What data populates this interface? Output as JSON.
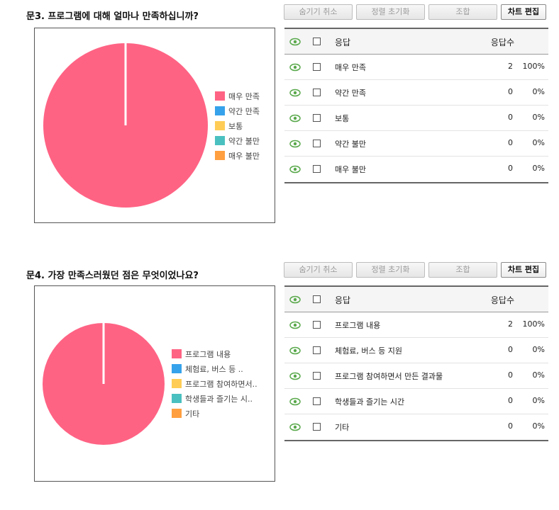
{
  "colors": {
    "very_satisfied": "#ff6384",
    "blue": "#36a2eb",
    "yellow": "#ffcd56",
    "teal": "#4bc0c0",
    "orange": "#ff9f40",
    "eye_icon": "#58a84a"
  },
  "toolbar": {
    "unhide_label": "숨기기 취소",
    "reset_sort_label": "정렬 초기화",
    "combine_label": "조합",
    "edit_chart_label": "차트 편집"
  },
  "table_header": {
    "response": "응답",
    "count": "응답수"
  },
  "q3": {
    "title": "문3. 프로그램에 대해 얼마나 만족하십니까?",
    "legend": [
      "매우 만족",
      "약간 만족",
      "보통",
      "약간 불만",
      "매우 불만"
    ],
    "rows": [
      {
        "label": "매우 만족",
        "count": "2",
        "pct": "100%"
      },
      {
        "label": "약간 만족",
        "count": "0",
        "pct": "0%"
      },
      {
        "label": "보통",
        "count": "0",
        "pct": "0%"
      },
      {
        "label": "약간 불만",
        "count": "0",
        "pct": "0%"
      },
      {
        "label": "매우 불만",
        "count": "0",
        "pct": "0%"
      }
    ]
  },
  "q4": {
    "title": "문4. 가장 만족스러웠던 점은 무엇이었나요?",
    "legend": [
      "프로그램 내용",
      "체험료, 버스 등 ..",
      "프로그램 참여하면서..",
      "학생들과 즐기는 시..",
      "기타"
    ],
    "rows": [
      {
        "label": "프로그램 내용",
        "count": "2",
        "pct": "100%"
      },
      {
        "label": "체험료, 버스 등 지원",
        "count": "0",
        "pct": "0%"
      },
      {
        "label": "프로그램 참여하면서 만든 결과물",
        "count": "0",
        "pct": "0%"
      },
      {
        "label": "학생들과 즐기는 시간",
        "count": "0",
        "pct": "0%"
      },
      {
        "label": "기타",
        "count": "0",
        "pct": "0%"
      }
    ]
  },
  "chart_data": [
    {
      "type": "pie",
      "title": "",
      "categories": [
        "매우 만족",
        "약간 만족",
        "보통",
        "약간 불만",
        "매우 불만"
      ],
      "values": [
        2,
        0,
        0,
        0,
        0
      ],
      "legend": "right"
    },
    {
      "type": "pie",
      "title": "",
      "categories": [
        "프로그램 내용",
        "체험료, 버스 등 지원",
        "프로그램 참여하면서 만든 결과물",
        "학생들과 즐기는 시간",
        "기타"
      ],
      "values": [
        2,
        0,
        0,
        0,
        0
      ],
      "legend": "right"
    }
  ]
}
